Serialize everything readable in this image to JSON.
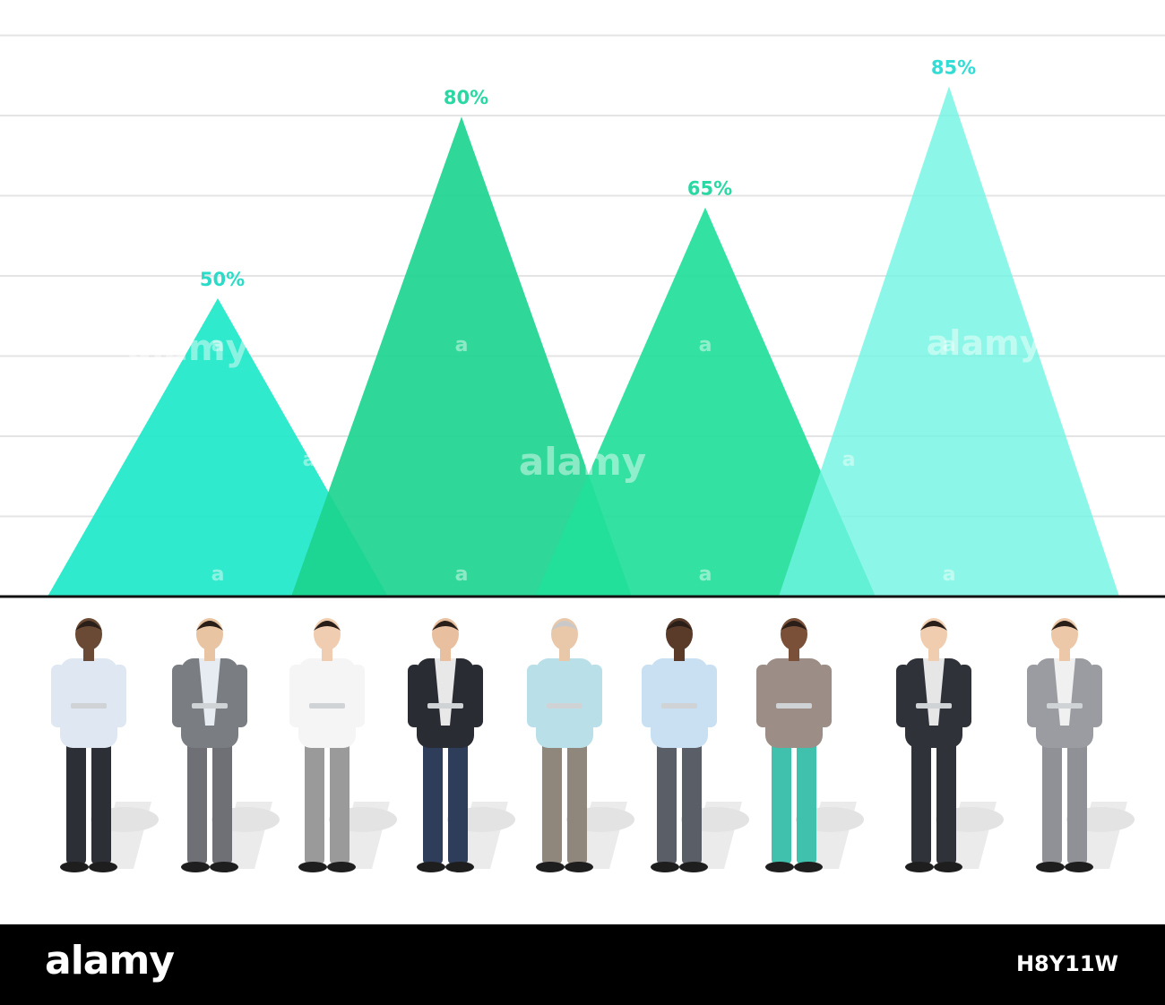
{
  "chart_data": {
    "type": "area",
    "shape": "triangle",
    "categories": [
      "",
      "",
      "",
      ""
    ],
    "values": [
      50,
      80,
      65,
      85
    ],
    "data_labels": [
      "50%",
      "80%",
      "65%",
      "85%"
    ],
    "ylim": [
      0,
      100
    ],
    "grid": true,
    "colors": [
      "#1de8c8",
      "#1dd48f",
      "#22e09a",
      "#6ff5e2"
    ],
    "label_colors": [
      "#2adcc8",
      "#2ad8a4",
      "#2ad8a4",
      "#33dcd4"
    ]
  },
  "illustration": {
    "people": [
      {
        "name": "man-with-tablet",
        "shirt": "#dfe7f2",
        "pants": "#2c2f36",
        "jacket": ""
      },
      {
        "name": "man-on-phone-grey-suit",
        "shirt": "#e7ecf3",
        "pants": "#6e7075",
        "jacket": "#7a7d82"
      },
      {
        "name": "woman-on-phone",
        "shirt": "#f5f5f5",
        "pants": "#9a9a9a",
        "jacket": ""
      },
      {
        "name": "man-with-tablet-jeans",
        "shirt": "#e8e8e8",
        "pants": "#2e3e5a",
        "jacket": "#2a2c33"
      },
      {
        "name": "senior-woman-on-phone",
        "shirt": "#b9dfe8",
        "pants": "#8f877c",
        "jacket": ""
      },
      {
        "name": "man-with-laptop",
        "shirt": "#c9dff2",
        "pants": "#5a5e66",
        "jacket": ""
      },
      {
        "name": "woman-with-tablet",
        "shirt": "#9c8e86",
        "pants": "#3fc1ad",
        "jacket": ""
      },
      {
        "name": "man-with-laptop-dark-suit",
        "shirt": "#e6e6e6",
        "pants": "#2f3238",
        "jacket": "#2f3238"
      },
      {
        "name": "man-with-tablet-light-suit",
        "shirt": "#f0f0f0",
        "pants": "#8f9196",
        "jacket": "#9a9ca1"
      }
    ]
  },
  "watermark": {
    "brand": "alamy",
    "letter": "a",
    "image_id": "H8Y11W"
  }
}
